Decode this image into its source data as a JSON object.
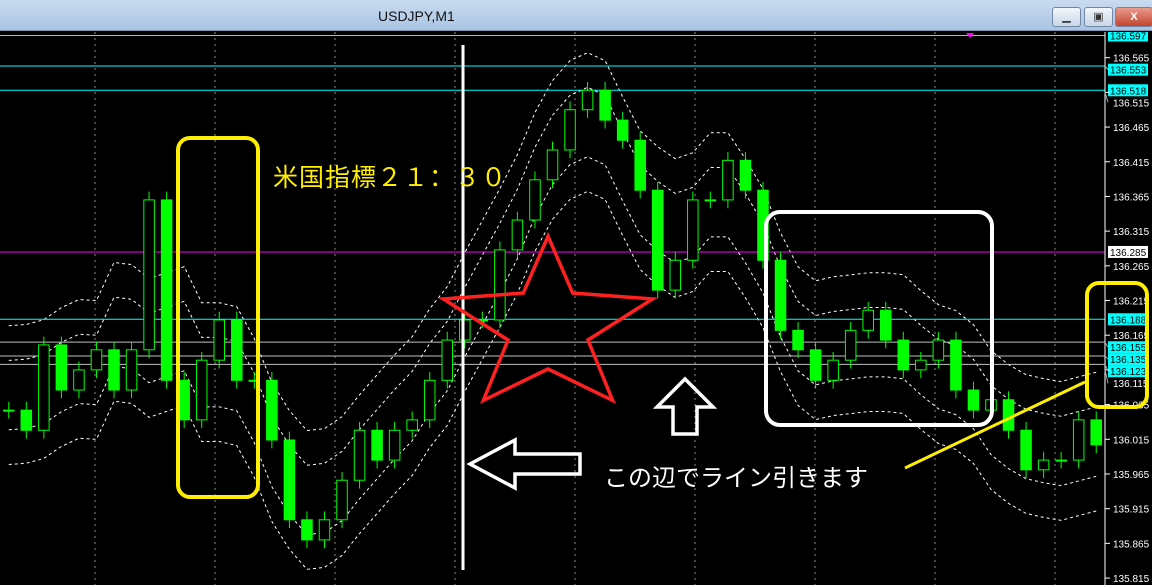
{
  "window": {
    "title": "USDJPY,M1",
    "minimize_label": "▁",
    "restore_label": "▣",
    "close_label": "X"
  },
  "annotations": {
    "event_text": "米国指標２１：３０",
    "line_text": "この辺でライン引きます",
    "colors": {
      "yellow": "#ffee00",
      "white": "#ffffff",
      "red": "#ff2020"
    }
  },
  "chart_data": {
    "type": "candlestick",
    "title": "USDJPY,M1",
    "xlabel": "",
    "ylabel": "",
    "ylim": [
      135.805,
      136.602
    ],
    "grid": "vertical dotted",
    "y_ticks": [
      "136.565",
      "136.515",
      "136.465",
      "136.415",
      "136.365",
      "136.315",
      "136.265",
      "136.215",
      "136.165",
      "136.115",
      "136.065",
      "136.015",
      "135.965",
      "135.915",
      "135.865",
      "135.815"
    ],
    "closes": [
      136.057,
      136.028,
      136.151,
      136.086,
      136.115,
      136.144,
      136.086,
      136.144,
      136.36,
      136.1,
      136.043,
      136.129,
      136.187,
      136.1,
      136.1,
      136.014,
      135.899,
      135.87,
      135.899,
      135.956,
      136.028,
      135.985,
      136.028,
      136.043,
      136.1,
      136.158,
      136.187,
      136.187,
      136.288,
      136.331,
      136.389,
      136.432,
      136.49,
      136.518,
      136.475,
      136.446,
      136.374,
      136.23,
      136.273,
      136.36,
      136.36,
      136.417,
      136.374,
      136.273,
      136.172,
      136.144,
      136.1,
      136.129,
      136.172,
      136.201,
      136.158,
      136.115,
      136.129,
      136.158,
      136.086,
      136.057,
      136.072,
      136.028,
      135.971,
      135.985,
      135.985,
      136.043,
      136.007
    ],
    "horizontal_lines": [
      {
        "price": "136.597",
        "color": "#00ffff"
      },
      {
        "price": "136.553",
        "color": "#00ffff"
      },
      {
        "price": "136.518",
        "color": "#00ffff"
      },
      {
        "price": "136.285",
        "color": "#ff00ff"
      },
      {
        "price": "136.188",
        "color": "#00ffff"
      },
      {
        "price": "136.155",
        "color": "#c0c0c0"
      },
      {
        "price": "136.135",
        "color": "#c0c0c0"
      },
      {
        "price": "136.123",
        "color": "#c0c0c0"
      }
    ],
    "colors": {
      "candle": "#00ff00",
      "bands": "#ffffff",
      "background": "#000000",
      "axis_text": "#ffffff"
    }
  }
}
